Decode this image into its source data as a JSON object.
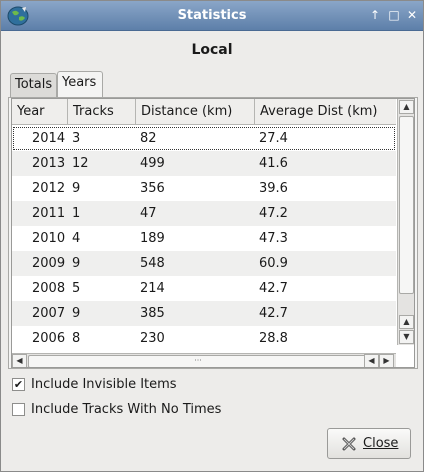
{
  "window": {
    "title": "Statistics",
    "controls": {
      "up": "↑",
      "maximize": "□",
      "close": "✕"
    }
  },
  "heading": "Local",
  "tabs": [
    {
      "label": "Totals",
      "active": false
    },
    {
      "label": "Years",
      "active": true
    }
  ],
  "table": {
    "columns": [
      "Year",
      "Tracks",
      "Distance (km)",
      "Average Dist (km)"
    ],
    "rows": [
      [
        "2014",
        "3",
        "82",
        "27.4"
      ],
      [
        "2013",
        "12",
        "499",
        "41.6"
      ],
      [
        "2012",
        "9",
        "356",
        "39.6"
      ],
      [
        "2011",
        "1",
        "47",
        "47.2"
      ],
      [
        "2010",
        "4",
        "189",
        "47.3"
      ],
      [
        "2009",
        "9",
        "548",
        "60.9"
      ],
      [
        "2008",
        "5",
        "214",
        "42.7"
      ],
      [
        "2007",
        "9",
        "385",
        "42.7"
      ],
      [
        "2006",
        "8",
        "230",
        "28.8"
      ]
    ]
  },
  "options": {
    "include_invisible": {
      "label": "Include Invisible Items",
      "checked": true
    },
    "include_no_times": {
      "label": "Include Tracks With No Times",
      "checked": false
    }
  },
  "buttons": {
    "close": "Close"
  },
  "colors": {
    "titlebar": "#6f8fb8",
    "accent": "#5d7fa9"
  }
}
